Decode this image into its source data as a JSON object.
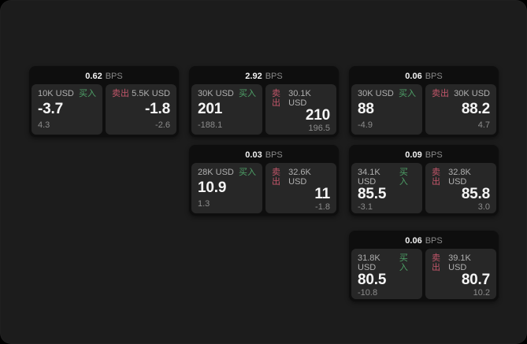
{
  "labels": {
    "bps": "BPS",
    "buy": "买入",
    "sell": "卖出"
  },
  "colors": {
    "buy_accent": "#4ea167",
    "sell_accent": "#c2566a",
    "page_background": "#1c1c1c",
    "card_background": "#0e0e0e",
    "panel_background": "#272727"
  },
  "cards": [
    {
      "bps": "0.62",
      "buy": {
        "amount": "10K USD",
        "price": "-3.7",
        "delta": "4.3"
      },
      "sell": {
        "amount": "5.5K USD",
        "price": "-1.8",
        "delta": "-2.6"
      }
    },
    {
      "bps": "2.92",
      "buy": {
        "amount": "30K USD",
        "price": "201",
        "delta": "-188.1"
      },
      "sell": {
        "amount": "30.1K USD",
        "price": "210",
        "delta": "196.5"
      }
    },
    {
      "bps": "0.06",
      "buy": {
        "amount": "30K USD",
        "price": "88",
        "delta": "-4.9"
      },
      "sell": {
        "amount": "30K USD",
        "price": "88.2",
        "delta": "4.7"
      }
    },
    {
      "bps": "0.03",
      "buy": {
        "amount": "28K USD",
        "price": "10.9",
        "delta": "1.3"
      },
      "sell": {
        "amount": "32.6K USD",
        "price": "11",
        "delta": "-1.8"
      }
    },
    {
      "bps": "0.09",
      "buy": {
        "amount": "34.1K USD",
        "price": "85.5",
        "delta": "-3.1"
      },
      "sell": {
        "amount": "32.8K USD",
        "price": "85.8",
        "delta": "3.0"
      }
    },
    {
      "bps": "0.06",
      "buy": {
        "amount": "31.8K USD",
        "price": "80.5",
        "delta": "-10.8"
      },
      "sell": {
        "amount": "39.1K USD",
        "price": "80.7",
        "delta": "10.2"
      }
    }
  ]
}
